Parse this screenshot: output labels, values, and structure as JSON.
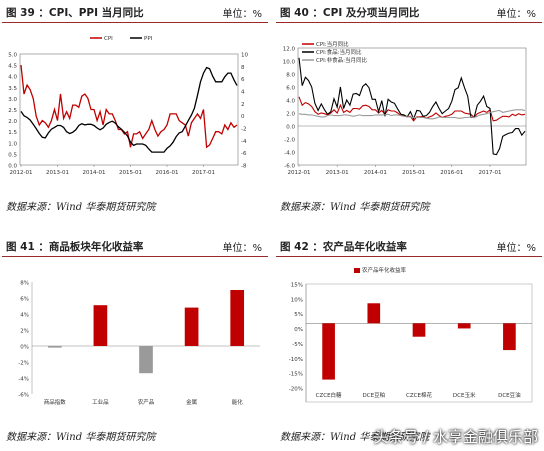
{
  "panels": [
    {
      "title": "图 39 ：CPI、PPI 当月同比",
      "unit": "单位：%",
      "source": "数据来源：Wind   华泰期货研究院"
    },
    {
      "title": "图 40 ：CPI 及分项当月同比",
      "unit": "单位：%",
      "source": "数据来源：Wind   华泰期货研究院"
    },
    {
      "title": "图 41 ：商品板块年化收益率",
      "unit": "单位：%",
      "source": "数据来源：Wind   华泰期货研究院"
    },
    {
      "title": "图 42 ：农产品年化收益率",
      "unit": "单位：%",
      "source": "数据来源：Wind   华泰期货研究院"
    }
  ],
  "watermark": "头条号 / 水享金融俱乐部",
  "colors": {
    "red": "#c00000",
    "black": "#000000",
    "gray": "#9a9a9a",
    "header_line": "#9a2a2a"
  },
  "chart_data": [
    {
      "type": "line",
      "x_ticks": [
        "2012-01",
        "2013-01",
        "2014-01",
        "2015-01",
        "2016-01",
        "2017-01"
      ],
      "y_left": {
        "ylim": [
          0,
          5
        ],
        "ticks": [
          "0.0",
          "0.5",
          "1.0",
          "1.5",
          "2.0",
          "2.5",
          "3.0",
          "3.5",
          "4.0",
          "4.5",
          "5.0"
        ]
      },
      "y_right": {
        "ylim": [
          -8,
          10
        ],
        "ticks": [
          "-8",
          "-6",
          "-4",
          "-2",
          "0",
          "2",
          "4",
          "6",
          "8",
          "10"
        ]
      },
      "legend_position": "top",
      "series": [
        {
          "name": "CPI",
          "axis": "left",
          "color": "#c00000",
          "values": [
            4.5,
            3.2,
            3.6,
            3.4,
            3.0,
            2.2,
            1.8,
            2.0,
            1.9,
            1.7,
            2.0,
            2.5,
            2.0,
            3.2,
            2.1,
            2.4,
            2.1,
            2.7,
            2.7,
            2.6,
            3.1,
            3.2,
            3.0,
            2.5,
            2.5,
            2.0,
            2.4,
            1.8,
            2.5,
            2.3,
            2.3,
            2.0,
            1.6,
            1.6,
            1.4,
            1.5,
            0.8,
            1.4,
            1.4,
            1.5,
            1.2,
            1.4,
            1.6,
            2.0,
            1.6,
            1.3,
            1.5,
            1.6,
            1.8,
            2.3,
            2.3,
            2.3,
            2.0,
            1.9,
            1.8,
            1.3,
            1.9,
            2.1,
            2.3,
            2.1,
            2.5,
            0.8,
            0.9,
            1.2,
            1.5,
            1.5,
            1.4,
            1.8,
            1.6,
            1.9,
            1.7,
            1.8
          ]
        },
        {
          "name": "PPI",
          "axis": "right",
          "color": "#000000",
          "values": [
            0.7,
            0.0,
            -0.3,
            -0.7,
            -1.4,
            -2.1,
            -2.9,
            -3.5,
            -3.6,
            -2.8,
            -2.2,
            -1.9,
            -1.6,
            -1.6,
            -1.9,
            -2.6,
            -2.9,
            -2.7,
            -2.3,
            -1.6,
            -1.3,
            -1.5,
            -1.4,
            -1.4,
            -1.6,
            -2.0,
            -2.3,
            -2.0,
            -1.4,
            -1.1,
            -0.9,
            -1.2,
            -1.8,
            -2.2,
            -2.7,
            -3.3,
            -4.3,
            -4.8,
            -4.6,
            -4.6,
            -4.6,
            -4.8,
            -5.4,
            -5.9,
            -5.9,
            -5.9,
            -5.9,
            -5.9,
            -5.3,
            -4.9,
            -4.3,
            -3.4,
            -2.8,
            -2.6,
            -1.7,
            -0.8,
            0.1,
            1.2,
            3.3,
            5.5,
            6.9,
            7.8,
            7.6,
            6.4,
            5.5,
            5.5,
            5.5,
            6.3,
            6.9,
            6.9,
            5.8,
            4.9
          ]
        }
      ]
    },
    {
      "type": "line",
      "x_ticks": [
        "2012-01",
        "2013-01",
        "2014-01",
        "2015-01",
        "2016-01",
        "2017-01"
      ],
      "ylim": [
        -6,
        12
      ],
      "y_ticks": [
        "-6.0",
        "-4.0",
        "-2.0",
        "0.0",
        "2.0",
        "4.0",
        "6.0",
        "8.0",
        "10.0",
        "12.0"
      ],
      "legend_position": "top-left",
      "series": [
        {
          "name": "CPI:当月同比",
          "color": "#c00000",
          "values": [
            4.5,
            3.2,
            3.6,
            3.4,
            3.0,
            2.2,
            1.8,
            2.0,
            1.9,
            1.7,
            2.0,
            2.5,
            2.0,
            3.2,
            2.1,
            2.4,
            2.1,
            2.7,
            2.7,
            2.6,
            3.1,
            3.2,
            3.0,
            2.5,
            2.5,
            2.0,
            2.4,
            1.8,
            2.5,
            2.3,
            2.3,
            2.0,
            1.6,
            1.6,
            1.4,
            1.5,
            0.8,
            1.4,
            1.4,
            1.5,
            1.2,
            1.4,
            1.6,
            2.0,
            1.6,
            1.3,
            1.5,
            1.6,
            1.8,
            2.3,
            2.3,
            2.3,
            2.0,
            1.9,
            1.8,
            1.3,
            1.9,
            2.1,
            2.3,
            2.1,
            2.5,
            0.8,
            0.9,
            1.2,
            1.5,
            1.5,
            1.4,
            1.8,
            1.6,
            1.9,
            1.7,
            1.8
          ]
        },
        {
          "name": "CPI:食品:当月同比",
          "color": "#000000",
          "values": [
            10.5,
            6.2,
            7.5,
            7.0,
            6.0,
            3.5,
            2.4,
            3.4,
            2.5,
            1.8,
            2.2,
            4.2,
            2.9,
            6.0,
            2.7,
            4.0,
            3.2,
            4.9,
            5.0,
            4.7,
            6.1,
            6.5,
            5.9,
            4.1,
            4.1,
            2.2,
            3.9,
            1.5,
            4.1,
            3.7,
            3.5,
            2.6,
            1.8,
            1.7,
            1.4,
            2.2,
            1.1,
            2.4,
            2.3,
            1.5,
            1.6,
            2.1,
            3.0,
            3.7,
            2.7,
            1.9,
            2.3,
            2.7,
            3.8,
            5.6,
            5.9,
            7.4,
            5.9,
            4.6,
            1.3,
            1.3,
            3.2,
            3.8,
            4.6,
            3.0,
            2.7,
            -4.3,
            -4.4,
            -3.5,
            -1.6,
            -1.3,
            -1.1,
            -1.0,
            -0.4,
            -0.4,
            -1.4,
            -0.8
          ]
        },
        {
          "name": "CPI:非食品:当月同比",
          "color": "#9a9a9a",
          "values": [
            1.9,
            1.8,
            1.8,
            1.7,
            1.7,
            1.6,
            1.5,
            1.4,
            1.4,
            1.6,
            1.7,
            1.6,
            1.6,
            1.6,
            1.7,
            1.7,
            1.6,
            1.5,
            1.6,
            1.7,
            1.6,
            1.6,
            1.6,
            1.6,
            1.7,
            1.7,
            1.7,
            1.7,
            1.8,
            1.6,
            1.7,
            1.7,
            1.6,
            1.5,
            1.4,
            1.4,
            1.3,
            1.3,
            1.3,
            1.3,
            1.2,
            1.1,
            1.1,
            1.2,
            1.4,
            1.3,
            1.3,
            1.3,
            1.3,
            1.3,
            1.2,
            1.2,
            1.3,
            1.3,
            1.4,
            1.3,
            1.5,
            1.7,
            1.8,
            1.9,
            2.1,
            2.2,
            2.3,
            2.4,
            2.1,
            2.2,
            2.3,
            2.4,
            2.5,
            2.5,
            2.5,
            2.4
          ]
        }
      ]
    },
    {
      "type": "bar",
      "categories": [
        "商品指数",
        "工业品",
        "农产品",
        "金属",
        "能化"
      ],
      "values": [
        -0.2,
        5.1,
        -3.4,
        4.8,
        7.0
      ],
      "colors": [
        "#9a9a9a",
        "#c00000",
        "#9a9a9a",
        "#c00000",
        "#c00000"
      ],
      "ylim": [
        -6,
        8
      ],
      "y_ticks": [
        "-6%",
        "-4%",
        "-2%",
        "0%",
        "2%",
        "4%",
        "6%",
        "8%"
      ]
    },
    {
      "type": "bar",
      "categories": [
        "CZCE白糖",
        "DCE豆粕",
        "CZCE棉花",
        "DCE玉米",
        "DCE豆油"
      ],
      "series": [
        {
          "name": "农产品年化收益率",
          "values": [
            -14.3,
            5.1,
            -3.4,
            -1.3,
            -6.8
          ]
        }
      ],
      "color": "#c00000",
      "legend_position": "top",
      "ylim": [
        -20,
        10
      ],
      "y_ticks": [
        "-20%",
        "-15%",
        "-10%",
        "-5%",
        "0%",
        "5%",
        "10%",
        "15%"
      ]
    }
  ]
}
